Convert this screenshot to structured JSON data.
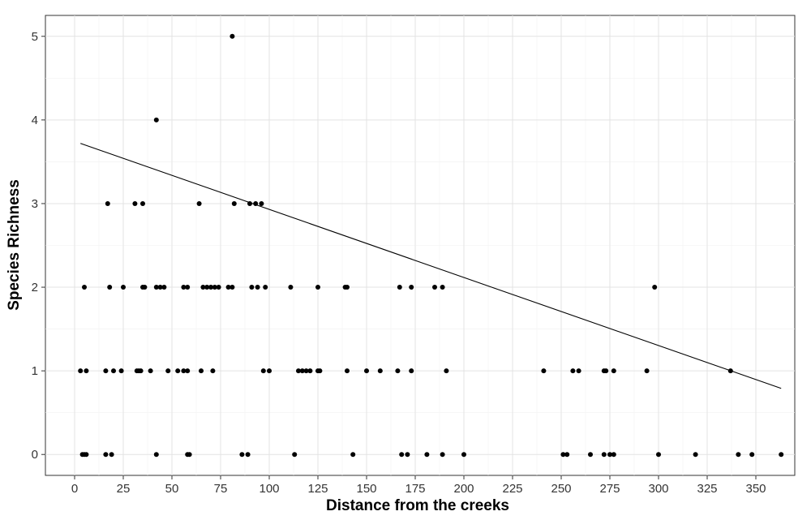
{
  "chart_data": {
    "type": "scatter",
    "xlabel": "Distance from the creeks",
    "ylabel": "Species Richness",
    "xlim": [
      -15,
      370
    ],
    "ylim": [
      -0.25,
      5.25
    ],
    "x_ticks": [
      0,
      25,
      50,
      75,
      100,
      125,
      150,
      175,
      200,
      225,
      250,
      275,
      300,
      325,
      350
    ],
    "y_ticks": [
      0,
      1,
      2,
      3,
      4,
      5
    ],
    "grid": true,
    "legend": "none",
    "point_color": "#000000",
    "series": [
      {
        "points": [
          [
            81,
            5
          ],
          [
            42,
            4
          ],
          [
            17,
            3
          ],
          [
            31,
            3
          ],
          [
            35,
            3
          ],
          [
            64,
            3
          ],
          [
            82,
            3
          ],
          [
            90,
            3
          ],
          [
            93,
            3
          ],
          [
            96,
            3
          ],
          [
            5,
            2
          ],
          [
            18,
            2
          ],
          [
            25,
            2
          ],
          [
            35,
            2
          ],
          [
            36,
            2
          ],
          [
            42,
            2
          ],
          [
            44,
            2
          ],
          [
            46,
            2
          ],
          [
            56,
            2
          ],
          [
            58,
            2
          ],
          [
            66,
            2
          ],
          [
            68,
            2
          ],
          [
            70,
            2
          ],
          [
            72,
            2
          ],
          [
            74,
            2
          ],
          [
            79,
            2
          ],
          [
            81,
            2
          ],
          [
            91,
            2
          ],
          [
            94,
            2
          ],
          [
            98,
            2
          ],
          [
            111,
            2
          ],
          [
            125,
            2
          ],
          [
            139,
            2
          ],
          [
            140,
            2
          ],
          [
            167,
            2
          ],
          [
            173,
            2
          ],
          [
            185,
            2
          ],
          [
            189,
            2
          ],
          [
            298,
            2
          ],
          [
            3,
            1
          ],
          [
            6,
            1
          ],
          [
            16,
            1
          ],
          [
            20,
            1
          ],
          [
            24,
            1
          ],
          [
            32,
            1
          ],
          [
            33,
            1
          ],
          [
            34,
            1
          ],
          [
            39,
            1
          ],
          [
            48,
            1
          ],
          [
            53,
            1
          ],
          [
            56,
            1
          ],
          [
            58,
            1
          ],
          [
            65,
            1
          ],
          [
            71,
            1
          ],
          [
            97,
            1
          ],
          [
            100,
            1
          ],
          [
            115,
            1
          ],
          [
            117,
            1
          ],
          [
            119,
            1
          ],
          [
            121,
            1
          ],
          [
            125,
            1
          ],
          [
            126,
            1
          ],
          [
            140,
            1
          ],
          [
            150,
            1
          ],
          [
            157,
            1
          ],
          [
            166,
            1
          ],
          [
            173,
            1
          ],
          [
            191,
            1
          ],
          [
            241,
            1
          ],
          [
            256,
            1
          ],
          [
            259,
            1
          ],
          [
            272,
            1
          ],
          [
            273,
            1
          ],
          [
            277,
            1
          ],
          [
            294,
            1
          ],
          [
            337,
            1
          ],
          [
            4,
            0
          ],
          [
            5,
            0
          ],
          [
            6,
            0
          ],
          [
            16,
            0
          ],
          [
            19,
            0
          ],
          [
            42,
            0
          ],
          [
            58,
            0
          ],
          [
            59,
            0
          ],
          [
            86,
            0
          ],
          [
            89,
            0
          ],
          [
            113,
            0
          ],
          [
            143,
            0
          ],
          [
            168,
            0
          ],
          [
            171,
            0
          ],
          [
            181,
            0
          ],
          [
            189,
            0
          ],
          [
            200,
            0
          ],
          [
            251,
            0
          ],
          [
            253,
            0
          ],
          [
            265,
            0
          ],
          [
            272,
            0
          ],
          [
            275,
            0
          ],
          [
            277,
            0
          ],
          [
            300,
            0
          ],
          [
            319,
            0
          ],
          [
            341,
            0
          ],
          [
            348,
            0
          ],
          [
            363,
            0
          ]
        ]
      }
    ],
    "trend_line": {
      "x": [
        3,
        363
      ],
      "y": [
        3.72,
        0.79
      ]
    }
  }
}
